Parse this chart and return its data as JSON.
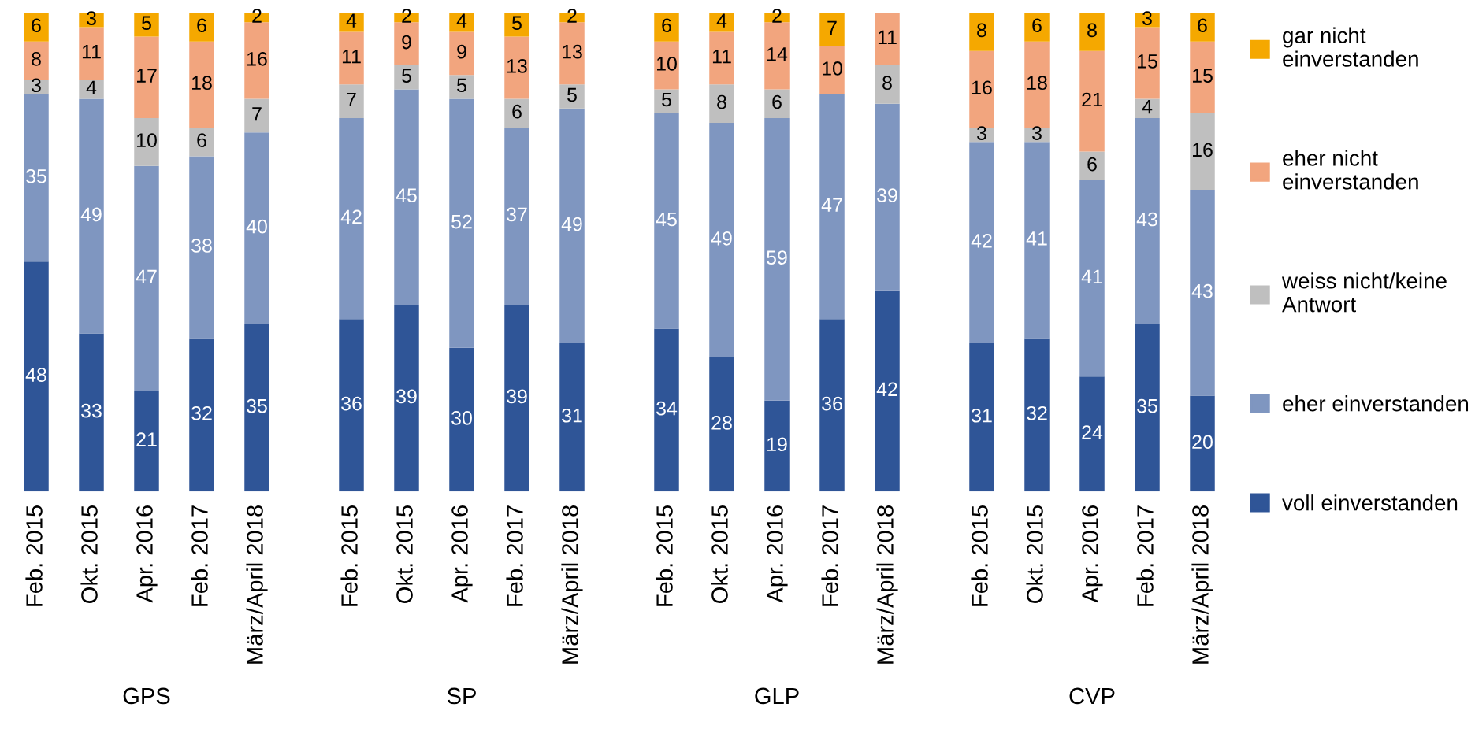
{
  "chart_data": [
    {
      "type": "bar",
      "stacked": true,
      "xlabel": "GPS",
      "grid": false,
      "categories": [
        "Feb. 2015",
        "Okt. 2015",
        "Apr. 2016",
        "Feb. 2017",
        "März/April 2018"
      ],
      "series": [
        {
          "color": "#2f5597",
          "values": [
            48,
            33,
            21,
            32,
            35
          ],
          "value_labels": [
            "48",
            "33",
            "21",
            "32",
            "35"
          ]
        },
        {
          "color": "#7f96c0",
          "values": [
            35,
            49,
            47,
            38,
            40
          ],
          "value_labels": [
            "35",
            "49",
            "47",
            "38",
            "40"
          ]
        },
        {
          "color": "#bfbfbf",
          "values": [
            3,
            4,
            10,
            6,
            7
          ],
          "value_labels": [
            "3",
            "4",
            "10",
            "6",
            "7"
          ]
        },
        {
          "color": "#f2a57e",
          "values": [
            8,
            11,
            17,
            18,
            16
          ],
          "value_labels": [
            "8",
            "11",
            "17",
            "18",
            "16"
          ]
        },
        {
          "color": "#f5a800",
          "values": [
            6,
            3,
            5,
            6,
            2
          ],
          "value_labels": [
            "6",
            "3",
            "5",
            "6",
            "2"
          ]
        }
      ]
    },
    {
      "type": "bar",
      "stacked": true,
      "xlabel": "SP",
      "grid": false,
      "categories": [
        "Feb. 2015",
        "Okt. 2015",
        "Apr. 2016",
        "Feb. 2017",
        "März/April 2018"
      ],
      "series": [
        {
          "color": "#2f5597",
          "values": [
            36,
            39,
            30,
            39,
            31
          ],
          "value_labels": [
            "36",
            "39",
            "30",
            "39",
            "31"
          ]
        },
        {
          "color": "#7f96c0",
          "values": [
            42,
            45,
            52,
            37,
            49
          ],
          "value_labels": [
            "42",
            "45",
            "52",
            "37",
            "49"
          ]
        },
        {
          "color": "#bfbfbf",
          "values": [
            7,
            5,
            5,
            6,
            5
          ],
          "value_labels": [
            "7",
            "5",
            "5",
            "6",
            "5"
          ]
        },
        {
          "color": "#f2a57e",
          "values": [
            11,
            9,
            9,
            13,
            13
          ],
          "value_labels": [
            "11",
            "9",
            "9",
            "13",
            "13"
          ]
        },
        {
          "color": "#f5a800",
          "values": [
            4,
            2,
            4,
            5,
            2
          ],
          "value_labels": [
            "4",
            "2",
            "4",
            "5",
            "2"
          ]
        }
      ]
    },
    {
      "type": "bar",
      "stacked": true,
      "xlabel": "GLP",
      "grid": false,
      "categories": [
        "Feb. 2015",
        "Okt. 2015",
        "Apr. 2016",
        "Feb. 2017",
        "März/April 2018"
      ],
      "series": [
        {
          "color": "#2f5597",
          "values": [
            34,
            28,
            19,
            36,
            42
          ],
          "value_labels": [
            "34",
            "28",
            "19",
            "36",
            "42"
          ]
        },
        {
          "color": "#7f96c0",
          "values": [
            45,
            49,
            59,
            47,
            39
          ],
          "value_labels": [
            "45",
            "49",
            "59",
            "47",
            "39"
          ]
        },
        {
          "color": "#bfbfbf",
          "values": [
            5,
            8,
            6,
            0,
            8
          ],
          "value_labels": [
            "5",
            "8",
            "6",
            null,
            "8"
          ]
        },
        {
          "color": "#f2a57e",
          "values": [
            10,
            11,
            14,
            10,
            11
          ],
          "value_labels": [
            "10",
            "11",
            "14",
            "10",
            "11"
          ]
        },
        {
          "color": "#f5a800",
          "values": [
            6,
            4,
            2,
            7,
            0
          ],
          "value_labels": [
            "6",
            "4",
            "2",
            "7",
            null
          ]
        }
      ]
    },
    {
      "type": "bar",
      "stacked": true,
      "xlabel": "CVP",
      "legend": "right",
      "grid": false,
      "categories": [
        "Feb. 2015",
        "Okt. 2015",
        "Apr. 2016",
        "Feb. 2017",
        "März/April 2018"
      ],
      "series": [
        {
          "name": "voll einverstanden",
          "color": "#2f5597",
          "values": [
            31,
            32,
            24,
            35,
            20
          ],
          "value_labels": [
            "31",
            "32",
            "24",
            "35",
            "20"
          ]
        },
        {
          "name": "eher einverstanden",
          "color": "#7f96c0",
          "values": [
            42,
            41,
            41,
            43,
            43
          ],
          "value_labels": [
            "42",
            "41",
            "41",
            "43",
            "43"
          ]
        },
        {
          "name": "weiss nicht/keine Antwort",
          "color": "#bfbfbf",
          "values": [
            3,
            3,
            6,
            4,
            16
          ],
          "value_labels": [
            "3",
            "3",
            "6",
            "4",
            "16"
          ]
        },
        {
          "name": "eher nicht einverstanden",
          "color": "#f2a57e",
          "values": [
            16,
            18,
            21,
            15,
            15
          ],
          "value_labels": [
            "16",
            "18",
            "21",
            "15",
            "15"
          ]
        },
        {
          "name": "gar nicht einverstanden",
          "color": "#f5a800",
          "values": [
            8,
            6,
            8,
            3,
            6
          ],
          "value_labels": [
            "8",
            "6",
            "8",
            "3",
            "6"
          ]
        }
      ]
    }
  ]
}
